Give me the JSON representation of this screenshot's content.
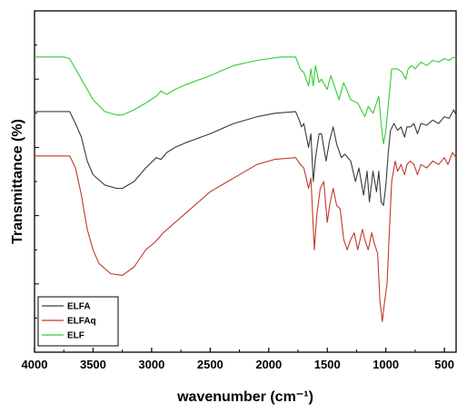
{
  "chart_data": {
    "type": "line",
    "title": "",
    "xlabel": "wavenumber (cm⁻¹)",
    "ylabel": "Transmittance (%)",
    "xlim": [
      4000,
      400
    ],
    "x_reversed": true,
    "ylim": [
      0,
      100
    ],
    "y_ticks_labeled": false,
    "x_ticks": [
      4000,
      3500,
      3000,
      2500,
      2000,
      1500,
      1000,
      500
    ],
    "x_tick_labels": [
      "4000",
      "3500",
      "3000",
      "2500",
      "2000",
      "1500",
      "1000",
      "500"
    ],
    "grid": false,
    "legend_position": "bottom-left",
    "series": [
      {
        "name": "ELF",
        "color": "#33cc33",
        "points": [
          [
            4000,
            86.5
          ],
          [
            3750,
            86.5
          ],
          [
            3700,
            86
          ],
          [
            3600,
            80
          ],
          [
            3500,
            74
          ],
          [
            3400,
            70.5
          ],
          [
            3300,
            69.5
          ],
          [
            3250,
            69.5
          ],
          [
            3150,
            71
          ],
          [
            3050,
            73
          ],
          [
            2960,
            75
          ],
          [
            2920,
            76.5
          ],
          [
            2870,
            75.5
          ],
          [
            2800,
            77
          ],
          [
            2700,
            78.5
          ],
          [
            2500,
            81
          ],
          [
            2300,
            84
          ],
          [
            2100,
            85.5
          ],
          [
            1900,
            86.5
          ],
          [
            1770,
            86.5
          ],
          [
            1730,
            83
          ],
          [
            1700,
            82
          ],
          [
            1660,
            78
          ],
          [
            1640,
            83
          ],
          [
            1620,
            78
          ],
          [
            1600,
            84
          ],
          [
            1570,
            79
          ],
          [
            1550,
            80
          ],
          [
            1500,
            77
          ],
          [
            1470,
            81
          ],
          [
            1440,
            78
          ],
          [
            1400,
            74
          ],
          [
            1360,
            79
          ],
          [
            1300,
            74
          ],
          [
            1240,
            73
          ],
          [
            1180,
            69
          ],
          [
            1150,
            72
          ],
          [
            1110,
            70
          ],
          [
            1060,
            75
          ],
          [
            1040,
            67
          ],
          [
            1020,
            61
          ],
          [
            1000,
            65
          ],
          [
            980,
            72
          ],
          [
            950,
            83
          ],
          [
            900,
            83
          ],
          [
            860,
            82
          ],
          [
            830,
            80
          ],
          [
            810,
            83
          ],
          [
            780,
            84
          ],
          [
            750,
            83
          ],
          [
            700,
            85
          ],
          [
            650,
            84
          ],
          [
            600,
            85.5
          ],
          [
            550,
            85
          ],
          [
            500,
            86
          ],
          [
            460,
            85.5
          ],
          [
            420,
            86.5
          ],
          [
            400,
            86
          ]
        ]
      },
      {
        "name": "ELFA",
        "color": "#3a3a3a",
        "points": [
          [
            4000,
            70.5
          ],
          [
            3700,
            70.5
          ],
          [
            3650,
            67
          ],
          [
            3600,
            63
          ],
          [
            3550,
            56
          ],
          [
            3500,
            52
          ],
          [
            3400,
            49
          ],
          [
            3300,
            48
          ],
          [
            3250,
            48
          ],
          [
            3150,
            50
          ],
          [
            3050,
            54
          ],
          [
            2960,
            57
          ],
          [
            2920,
            56.5
          ],
          [
            2870,
            58.5
          ],
          [
            2800,
            60
          ],
          [
            2700,
            61.5
          ],
          [
            2500,
            64
          ],
          [
            2300,
            67
          ],
          [
            2100,
            69
          ],
          [
            1950,
            70
          ],
          [
            1770,
            70.5
          ],
          [
            1740,
            68
          ],
          [
            1720,
            66
          ],
          [
            1700,
            67
          ],
          [
            1660,
            60
          ],
          [
            1640,
            64
          ],
          [
            1620,
            50
          ],
          [
            1600,
            57
          ],
          [
            1570,
            64
          ],
          [
            1550,
            64
          ],
          [
            1510,
            56
          ],
          [
            1480,
            62
          ],
          [
            1450,
            66
          ],
          [
            1420,
            61
          ],
          [
            1380,
            57
          ],
          [
            1350,
            58
          ],
          [
            1300,
            56
          ],
          [
            1260,
            50
          ],
          [
            1230,
            54
          ],
          [
            1190,
            46
          ],
          [
            1160,
            53
          ],
          [
            1140,
            44
          ],
          [
            1110,
            53
          ],
          [
            1080,
            47
          ],
          [
            1060,
            53
          ],
          [
            1040,
            44
          ],
          [
            1020,
            43
          ],
          [
            1000,
            49
          ],
          [
            980,
            58
          ],
          [
            960,
            65
          ],
          [
            930,
            67
          ],
          [
            900,
            65
          ],
          [
            870,
            66
          ],
          [
            840,
            63
          ],
          [
            820,
            66
          ],
          [
            790,
            66
          ],
          [
            760,
            67
          ],
          [
            730,
            64
          ],
          [
            700,
            67
          ],
          [
            650,
            66.5
          ],
          [
            600,
            68
          ],
          [
            550,
            67
          ],
          [
            500,
            69
          ],
          [
            460,
            68.5
          ],
          [
            420,
            71
          ],
          [
            400,
            69.5
          ]
        ]
      },
      {
        "name": "ELFAq",
        "color": "#c0392b",
        "points": [
          [
            4000,
            57.5
          ],
          [
            3700,
            57.5
          ],
          [
            3650,
            54
          ],
          [
            3600,
            46
          ],
          [
            3550,
            36
          ],
          [
            3500,
            30
          ],
          [
            3450,
            26
          ],
          [
            3350,
            23
          ],
          [
            3250,
            22.5
          ],
          [
            3150,
            25
          ],
          [
            3050,
            30
          ],
          [
            2980,
            32
          ],
          [
            2950,
            33
          ],
          [
            2900,
            35
          ],
          [
            2800,
            38
          ],
          [
            2700,
            41
          ],
          [
            2500,
            47
          ],
          [
            2300,
            51
          ],
          [
            2100,
            55
          ],
          [
            1950,
            56.5
          ],
          [
            1770,
            57
          ],
          [
            1730,
            55
          ],
          [
            1700,
            54
          ],
          [
            1660,
            48
          ],
          [
            1640,
            51
          ],
          [
            1610,
            30
          ],
          [
            1590,
            40
          ],
          [
            1560,
            48
          ],
          [
            1530,
            50
          ],
          [
            1500,
            38
          ],
          [
            1480,
            43
          ],
          [
            1450,
            48
          ],
          [
            1420,
            43
          ],
          [
            1390,
            42
          ],
          [
            1360,
            33
          ],
          [
            1330,
            30
          ],
          [
            1300,
            33
          ],
          [
            1270,
            35
          ],
          [
            1240,
            30
          ],
          [
            1200,
            36
          ],
          [
            1180,
            33
          ],
          [
            1150,
            30
          ],
          [
            1120,
            35
          ],
          [
            1100,
            32
          ],
          [
            1070,
            29
          ],
          [
            1050,
            15
          ],
          [
            1030,
            9
          ],
          [
            1010,
            15
          ],
          [
            990,
            20
          ],
          [
            970,
            35
          ],
          [
            950,
            50
          ],
          [
            920,
            56
          ],
          [
            900,
            53
          ],
          [
            870,
            55
          ],
          [
            840,
            52
          ],
          [
            820,
            55
          ],
          [
            790,
            56
          ],
          [
            760,
            55
          ],
          [
            730,
            52
          ],
          [
            700,
            55
          ],
          [
            650,
            54
          ],
          [
            600,
            56
          ],
          [
            550,
            55
          ],
          [
            500,
            57
          ],
          [
            470,
            55
          ],
          [
            430,
            58.5
          ],
          [
            400,
            57
          ]
        ]
      }
    ]
  }
}
